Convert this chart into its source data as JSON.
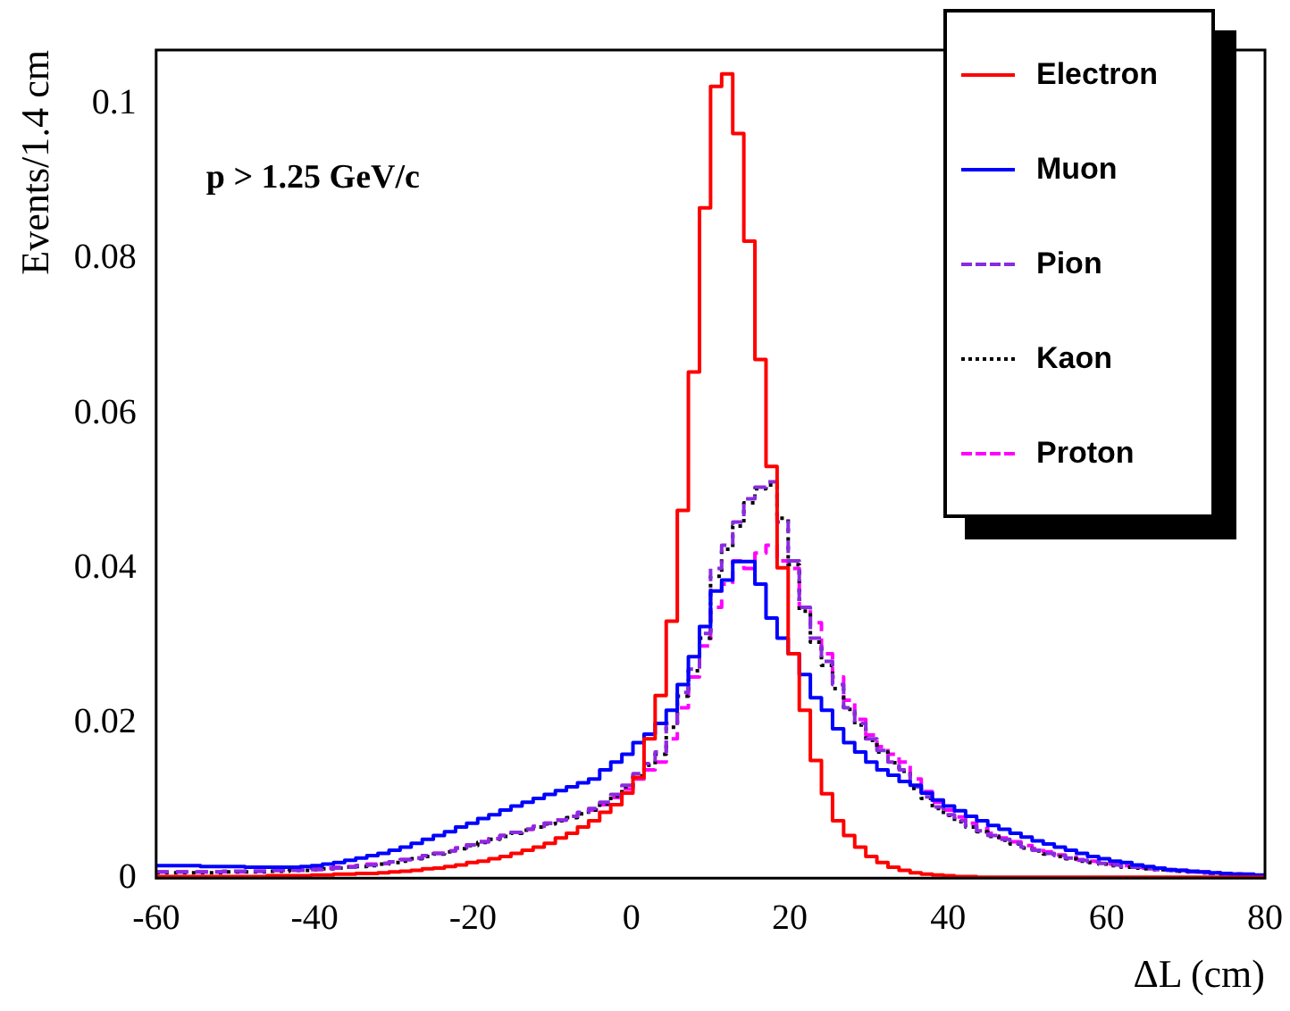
{
  "chart_data": {
    "type": "histogram",
    "xlabel": "ΔL (cm)",
    "ylabel": "Events/1.4 cm",
    "annotations": [
      "p > 1.25 GeV/c"
    ],
    "bins": [
      -60,
      -58.6,
      -57.2,
      -55.8,
      -54.4,
      -53,
      -51.6,
      -50.2,
      -48.8,
      -47.4,
      -46,
      -44.6,
      -43.2,
      -41.8,
      -40.4,
      -39,
      -37.6,
      -36.2,
      -34.8,
      -33.4,
      -32,
      -30.6,
      -29.2,
      -27.8,
      -26.4,
      -25,
      -23.6,
      -22.2,
      -20.8,
      -19.4,
      -18,
      -16.6,
      -15.2,
      -13.8,
      -12.4,
      -11,
      -9.6,
      -8.2,
      -6.8,
      -5.4,
      -4,
      -2.6,
      -1.2,
      0.2,
      1.6,
      3,
      4.4,
      5.8,
      7.2,
      8.6,
      10,
      11.4,
      12.8,
      14.2,
      15.6,
      17,
      18.4,
      19.8,
      21.2,
      22.6,
      24,
      25.4,
      26.8,
      28.2,
      29.6,
      31,
      32.4,
      33.8,
      35.2,
      36.6,
      38,
      39.4,
      40.8,
      42.2,
      43.6,
      45,
      46.4,
      47.8,
      49.2,
      50.6,
      52,
      53.4,
      54.8,
      56.2,
      57.6,
      59,
      60.4,
      61.8,
      63.2,
      64.6,
      66,
      67.4,
      68.8,
      70.2,
      71.6,
      73,
      74.4,
      75.8,
      77.2,
      78.6,
      80
    ],
    "series": [
      {
        "name": "Electron",
        "color": "#ff0000",
        "line_style": "solid",
        "values": [
          0.0002,
          0.0002,
          0.0002,
          0.0002,
          0.0002,
          0.0002,
          0.0002,
          0.0002,
          0.0002,
          0.0002,
          0.0003,
          0.0003,
          0.0003,
          0.0003,
          0.0004,
          0.0004,
          0.0005,
          0.0005,
          0.0006,
          0.0006,
          0.0007,
          0.0008,
          0.0009,
          0.001,
          0.0012,
          0.0013,
          0.0015,
          0.0017,
          0.002,
          0.0022,
          0.0025,
          0.0028,
          0.0032,
          0.0036,
          0.004,
          0.0045,
          0.0052,
          0.0058,
          0.0066,
          0.0074,
          0.0085,
          0.0095,
          0.011,
          0.013,
          0.018,
          0.0236,
          0.0332,
          0.0475,
          0.0654,
          0.0866,
          0.1023,
          0.1039,
          0.0962,
          0.0823,
          0.067,
          0.0532,
          0.0401,
          0.029,
          0.0217,
          0.0152,
          0.0109,
          0.0074,
          0.0055,
          0.004,
          0.0028,
          0.002,
          0.0014,
          0.001,
          0.0007,
          0.0005,
          0.0004,
          0.0003,
          0.0002,
          0.0002,
          0.0001,
          0.0001,
          0.0001,
          0.0001,
          0.0001,
          0.0001,
          0.0001,
          0.0001,
          0.0001,
          0.0001,
          0.0001,
          0.0001,
          0.0001,
          0.0001,
          0.0001,
          0.0001,
          0.0001,
          0.0001,
          0.0001,
          0.0001,
          0.0001,
          0.0001,
          0.0001,
          0.0001,
          0.0001,
          0.0001
        ]
      },
      {
        "name": "Muon",
        "color": "#0000ff",
        "line_style": "solid",
        "values": [
          0.0016,
          0.0016,
          0.0016,
          0.0016,
          0.0015,
          0.0015,
          0.0015,
          0.0015,
          0.0014,
          0.0014,
          0.0014,
          0.0014,
          0.0014,
          0.0015,
          0.0016,
          0.0018,
          0.002,
          0.0023,
          0.0026,
          0.0029,
          0.0032,
          0.0036,
          0.004,
          0.0045,
          0.005,
          0.0055,
          0.006,
          0.0066,
          0.0071,
          0.0077,
          0.0082,
          0.0088,
          0.0093,
          0.0098,
          0.0103,
          0.0108,
          0.0113,
          0.0118,
          0.0123,
          0.0128,
          0.014,
          0.015,
          0.016,
          0.0175,
          0.0186,
          0.02,
          0.0217,
          0.025,
          0.0286,
          0.0325,
          0.0371,
          0.0385,
          0.0409,
          0.0409,
          0.038,
          0.0336,
          0.031,
          0.029,
          0.0263,
          0.0233,
          0.0217,
          0.0193,
          0.0175,
          0.0163,
          0.015,
          0.014,
          0.0133,
          0.0125,
          0.012,
          0.011,
          0.0101,
          0.0093,
          0.0087,
          0.008,
          0.0074,
          0.0068,
          0.0063,
          0.0058,
          0.0053,
          0.0048,
          0.0044,
          0.004,
          0.0036,
          0.0032,
          0.0028,
          0.0025,
          0.0022,
          0.002,
          0.0017,
          0.0015,
          0.0013,
          0.0011,
          0.001,
          0.0009,
          0.0008,
          0.0007,
          0.0006,
          0.0005,
          0.0005,
          0.0004
        ]
      },
      {
        "name": "Pion",
        "color": "#8a2be2",
        "line_style": "dashed",
        "values": [
          0.0008,
          0.0008,
          0.0008,
          0.0008,
          0.0008,
          0.0008,
          0.0009,
          0.0009,
          0.0009,
          0.0009,
          0.001,
          0.001,
          0.001,
          0.001,
          0.0011,
          0.0012,
          0.0013,
          0.0014,
          0.0016,
          0.0017,
          0.0019,
          0.0021,
          0.0024,
          0.0026,
          0.0029,
          0.0032,
          0.0035,
          0.0039,
          0.0043,
          0.0047,
          0.0051,
          0.0055,
          0.0059,
          0.0063,
          0.0067,
          0.0071,
          0.0075,
          0.008,
          0.0085,
          0.009,
          0.0098,
          0.0108,
          0.012,
          0.0135,
          0.0148,
          0.0163,
          0.02,
          0.024,
          0.027,
          0.0316,
          0.04,
          0.043,
          0.046,
          0.049,
          0.0505,
          0.0512,
          0.046,
          0.041,
          0.035,
          0.031,
          0.028,
          0.025,
          0.022,
          0.02,
          0.018,
          0.0165,
          0.015,
          0.014,
          0.0118,
          0.0105,
          0.0092,
          0.0082,
          0.0074,
          0.0067,
          0.0061,
          0.0055,
          0.005,
          0.0045,
          0.004,
          0.0036,
          0.0032,
          0.0029,
          0.0026,
          0.0023,
          0.0021,
          0.0019,
          0.0017,
          0.0015,
          0.0014,
          0.0012,
          0.0011,
          0.001,
          0.0009,
          0.0008,
          0.0007,
          0.0006,
          0.0005,
          0.0005,
          0.0004,
          0.0003
        ]
      },
      {
        "name": "Kaon",
        "color": "#000000",
        "line_style": "dotted",
        "values": [
          0.0007,
          0.0007,
          0.0007,
          0.0007,
          0.0007,
          0.0007,
          0.0008,
          0.0008,
          0.0008,
          0.0008,
          0.0009,
          0.0009,
          0.001,
          0.001,
          0.0011,
          0.0012,
          0.0013,
          0.0014,
          0.0015,
          0.0016,
          0.0018,
          0.002,
          0.0022,
          0.0025,
          0.0028,
          0.0031,
          0.0034,
          0.0038,
          0.0042,
          0.0046,
          0.005,
          0.0054,
          0.0058,
          0.0062,
          0.0066,
          0.007,
          0.0074,
          0.0078,
          0.0083,
          0.0088,
          0.0096,
          0.0106,
          0.0118,
          0.0132,
          0.0146,
          0.016,
          0.0195,
          0.0235,
          0.0268,
          0.031,
          0.039,
          0.0425,
          0.0455,
          0.0485,
          0.0503,
          0.0508,
          0.0465,
          0.0405,
          0.0345,
          0.0305,
          0.0275,
          0.0245,
          0.0218,
          0.0198,
          0.0178,
          0.0163,
          0.0149,
          0.0138,
          0.0116,
          0.0103,
          0.009,
          0.0081,
          0.0073,
          0.0066,
          0.006,
          0.0054,
          0.0049,
          0.0044,
          0.0039,
          0.0035,
          0.0031,
          0.0028,
          0.0025,
          0.0022,
          0.002,
          0.0018,
          0.0016,
          0.0014,
          0.0013,
          0.0012,
          0.0011,
          0.001,
          0.0009,
          0.0008,
          0.0007,
          0.0006,
          0.0005,
          0.0005,
          0.0004,
          0.0003
        ]
      },
      {
        "name": "Proton",
        "color": "#ff00ff",
        "line_style": "dashed",
        "values": [
          0.0008,
          0.0008,
          0.0008,
          0.0008,
          0.0008,
          0.0008,
          0.0008,
          0.0008,
          0.0009,
          0.0009,
          0.001,
          0.001,
          0.0011,
          0.0011,
          0.0012,
          0.0013,
          0.0014,
          0.0015,
          0.0016,
          0.0018,
          0.0019,
          0.0021,
          0.0024,
          0.0026,
          0.0029,
          0.0032,
          0.0035,
          0.0039,
          0.0043,
          0.0047,
          0.0051,
          0.0055,
          0.0059,
          0.0063,
          0.0067,
          0.0071,
          0.0075,
          0.008,
          0.0084,
          0.0088,
          0.0095,
          0.0104,
          0.0115,
          0.0128,
          0.014,
          0.015,
          0.018,
          0.022,
          0.026,
          0.03,
          0.035,
          0.038,
          0.041,
          0.04,
          0.042,
          0.043,
          0.041,
          0.04,
          0.035,
          0.033,
          0.029,
          0.026,
          0.023,
          0.0205,
          0.0185,
          0.017,
          0.016,
          0.015,
          0.0128,
          0.0112,
          0.0098,
          0.0088,
          0.0079,
          0.0071,
          0.0064,
          0.0058,
          0.0052,
          0.0047,
          0.0042,
          0.0038,
          0.0034,
          0.003,
          0.0027,
          0.0024,
          0.0022,
          0.002,
          0.0018,
          0.0016,
          0.0014,
          0.0013,
          0.0012,
          0.0011,
          0.001,
          0.0009,
          0.0008,
          0.0007,
          0.0006,
          0.0005,
          0.0004,
          0.0003
        ]
      }
    ],
    "xlim": [
      -60,
      80
    ],
    "xticks": [
      -60,
      -40,
      -20,
      0,
      20,
      40,
      60,
      80
    ],
    "ylim": [
      0,
      0.107
    ],
    "yticks": [
      0,
      0.02,
      0.04,
      0.06,
      0.08,
      0.1
    ],
    "grid": false,
    "legend": "top right"
  }
}
